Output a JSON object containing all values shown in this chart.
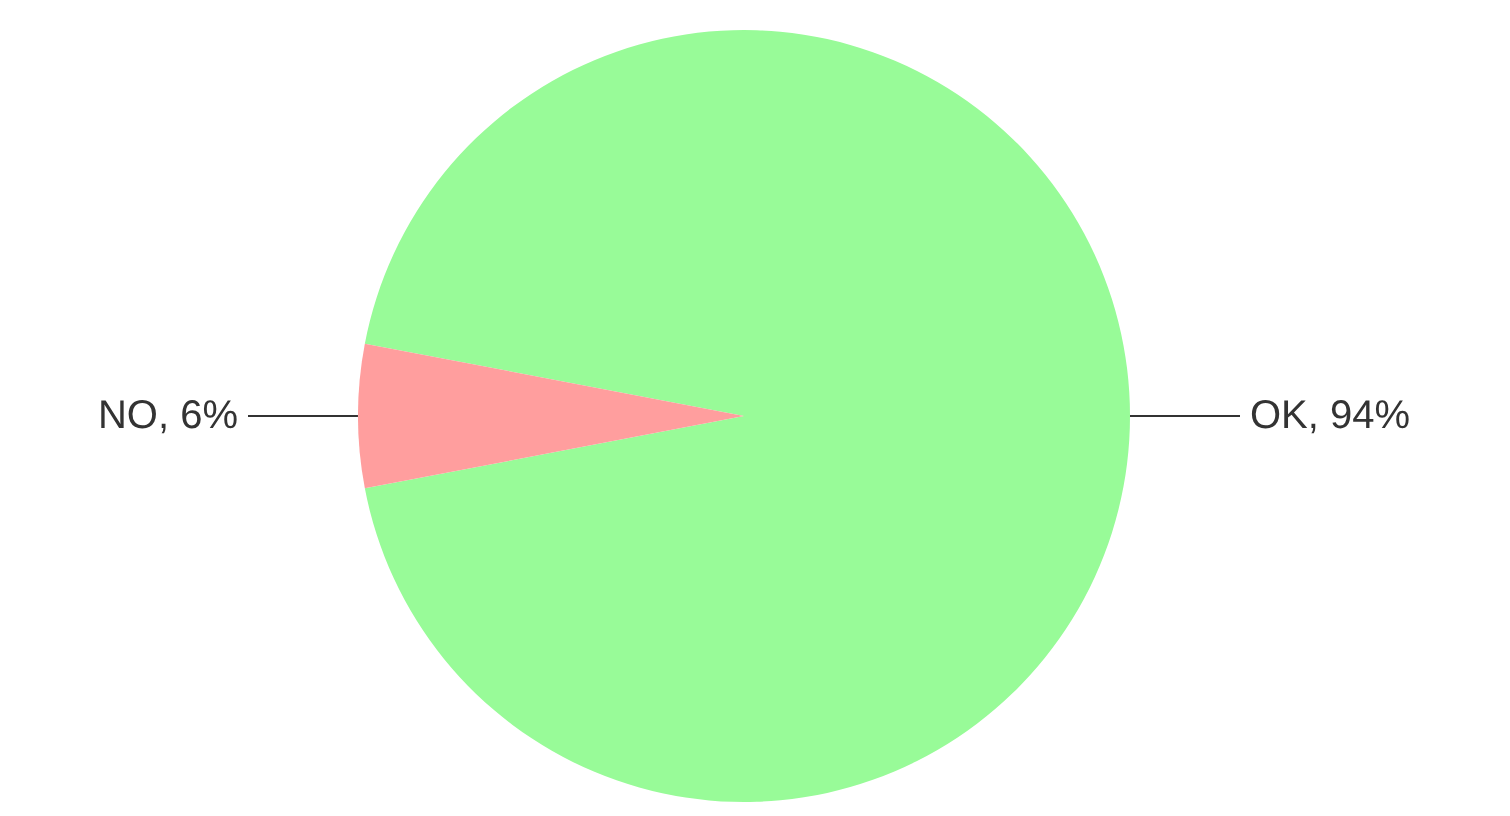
{
  "chart_data": {
    "type": "pie",
    "categories": [
      "OK",
      "NO"
    ],
    "values": [
      94,
      6
    ],
    "value_labels": [
      "94%",
      "6%"
    ],
    "colors": [
      "#98fb98",
      "#ff9e9e"
    ]
  }
}
